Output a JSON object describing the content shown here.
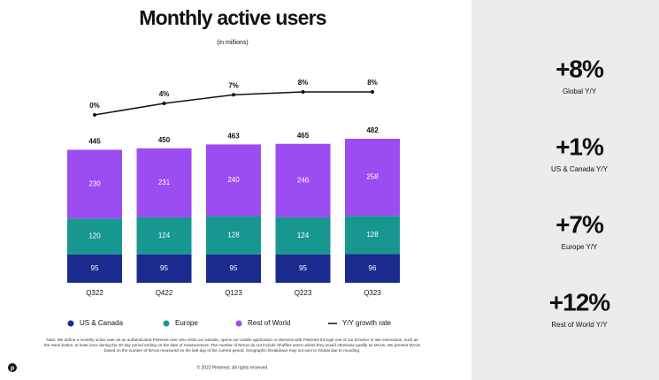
{
  "chart_data": {
    "type": "bar",
    "title": "Monthly active users",
    "subtitle": "(in millions)",
    "categories": [
      "Q322",
      "Q422",
      "Q123",
      "Q223",
      "Q323"
    ],
    "series": [
      {
        "name": "US & Canada",
        "color": "#1b2a8f",
        "values": [
          95,
          95,
          95,
          95,
          96
        ]
      },
      {
        "name": "Europe",
        "color": "#17978f",
        "values": [
          120,
          124,
          128,
          124,
          128
        ]
      },
      {
        "name": "Rest of World",
        "color": "#9b4df2",
        "values": [
          230,
          231,
          240,
          246,
          258
        ]
      }
    ],
    "totals": [
      445,
      450,
      463,
      465,
      482
    ],
    "line": {
      "name": "Y/Y growth rate",
      "color": "#111111",
      "values": [
        0,
        4,
        7,
        8,
        8
      ],
      "value_labels": [
        "0%",
        "4%",
        "7%",
        "8%",
        "8%"
      ]
    },
    "note": "Note: We define a monthly active user as an authenticated Pinterest user who visits our website, opens our mobile application or interacts with Pinterest through one of our browser or site extensions, such as the Save button, at least once during the 30-day period ending on the date of measurement. The number of MAUs do not include Shuffles users unless they would otherwise qualify as MAUs. We present MAUs based on the number of MAUs measured on the last day of the current period. Geographic breakdown may not sum to Global due to rounding.",
    "footer": "© 2023 Pinterest. All rights reserved."
  },
  "kpis": [
    {
      "value": "+8%",
      "label": "Global Y/Y"
    },
    {
      "value": "+1%",
      "label": "US & Canada Y/Y"
    },
    {
      "value": "+7%",
      "label": "Europe Y/Y"
    },
    {
      "value": "+12%",
      "label": "Rest of World Y/Y"
    }
  ]
}
